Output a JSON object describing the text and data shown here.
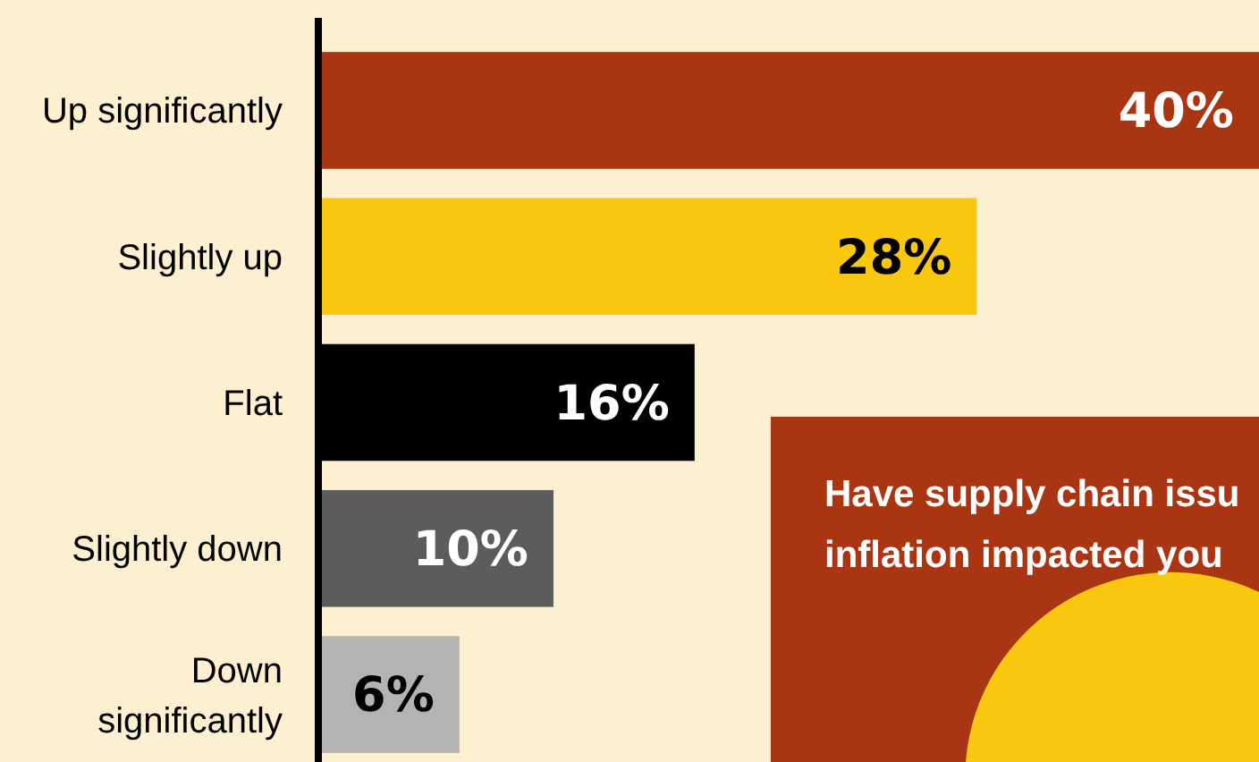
{
  "chart_data": {
    "type": "bar",
    "orientation": "horizontal",
    "categories": [
      "Up significantly",
      "Slightly up",
      "Flat",
      "Slightly down",
      "Down significantly"
    ],
    "values": [
      40,
      28,
      16,
      10,
      6
    ],
    "value_labels": [
      "40%",
      "28%",
      "16%",
      "10%",
      "6%"
    ],
    "colors": [
      "#a93513",
      "#f9c80e",
      "#000000",
      "#5c5c5c",
      "#b3b3b3"
    ],
    "xlim": [
      0,
      40
    ],
    "tick_labels": "y",
    "annotations": [
      "Have supply chain issu",
      "inflation impacted you"
    ]
  }
}
